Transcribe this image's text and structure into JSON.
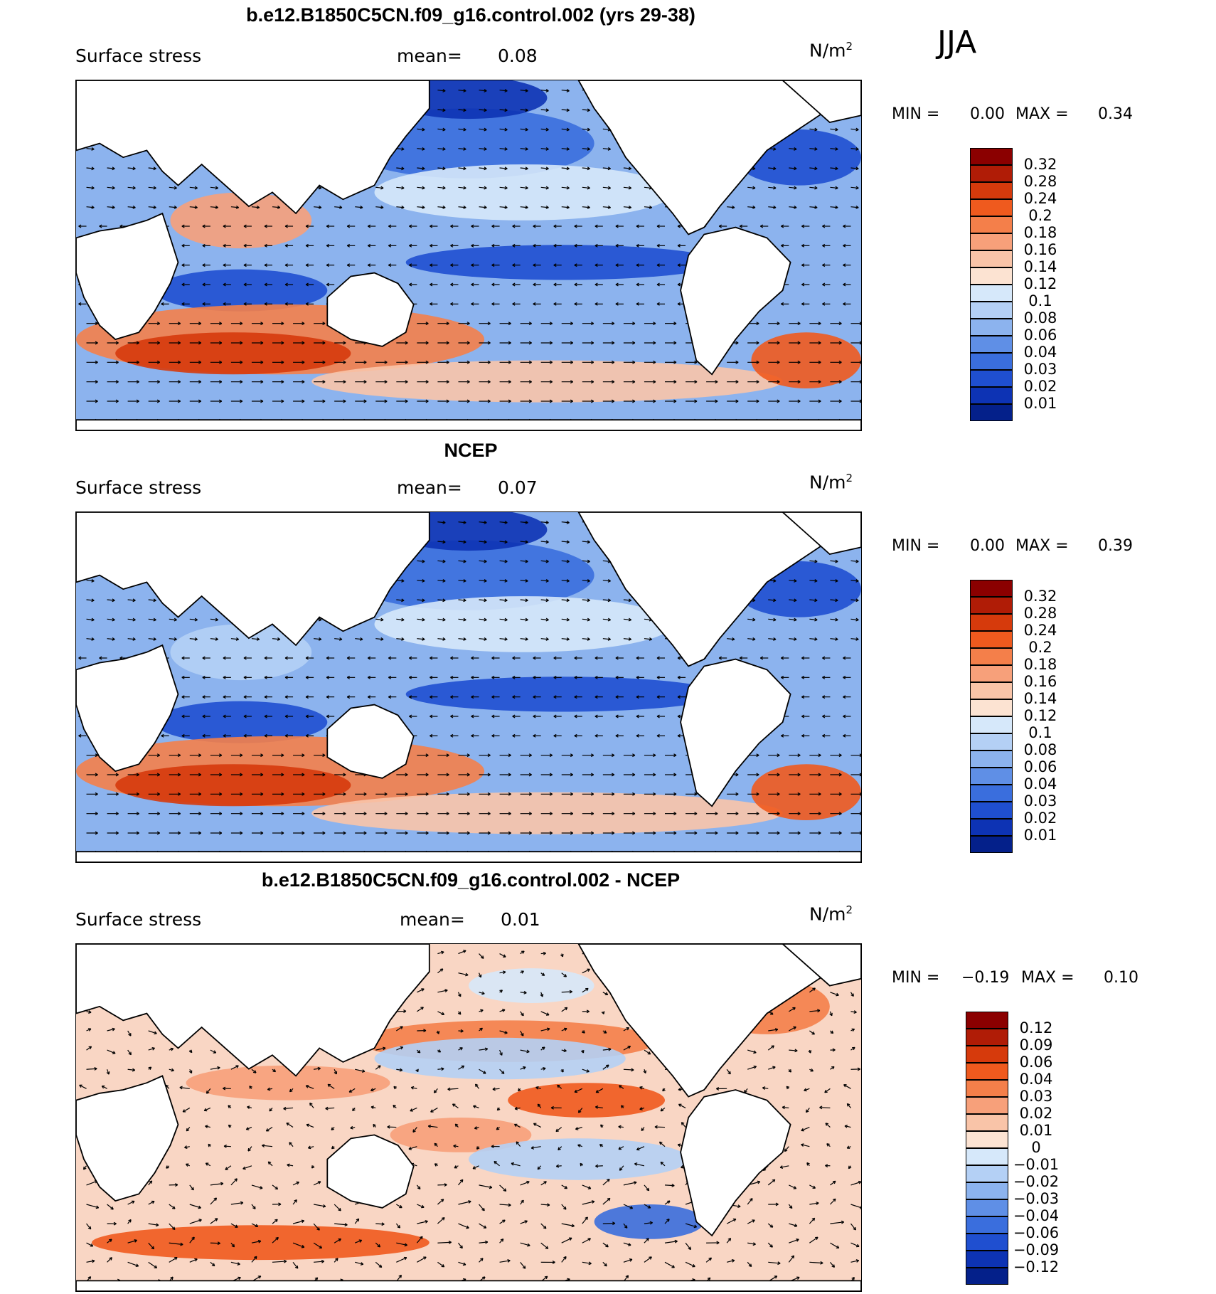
{
  "season": "JJA",
  "units": "N/m",
  "units_sup": "2",
  "panels": [
    {
      "title": "b.e12.B1850C5CN.f09_g16.control.002 (yrs 29-38)",
      "variable": "Surface stress",
      "mean_label": "mean=",
      "mean_value": "0.08",
      "min_label": "MIN =",
      "min_value": "0.00",
      "max_label": "MAX =",
      "max_value": "0.34",
      "levels": [
        "0.32",
        "0.28",
        "0.24",
        "0.2",
        "0.18",
        "0.16",
        "0.14",
        "0.12",
        "0.1",
        "0.08",
        "0.06",
        "0.04",
        "0.03",
        "0.02",
        "0.01"
      ],
      "colors": [
        "#8b0000",
        "#b01c06",
        "#d63a0c",
        "#ef5a1e",
        "#f47f4a",
        "#f7a07a",
        "#f9c4a8",
        "#fce3d2",
        "#d6e8fa",
        "#b4d0f5",
        "#8cb3ee",
        "#5f8fe6",
        "#3a6edd",
        "#1f4fd0",
        "#0d33b4",
        "#04208a"
      ]
    },
    {
      "title": "NCEP",
      "variable": "Surface stress",
      "mean_label": "mean=",
      "mean_value": "0.07",
      "min_label": "MIN =",
      "min_value": "0.00",
      "max_label": "MAX =",
      "max_value": "0.39",
      "levels": [
        "0.32",
        "0.28",
        "0.24",
        "0.2",
        "0.18",
        "0.16",
        "0.14",
        "0.12",
        "0.1",
        "0.08",
        "0.06",
        "0.04",
        "0.03",
        "0.02",
        "0.01"
      ],
      "colors": [
        "#8b0000",
        "#b01c06",
        "#d63a0c",
        "#ef5a1e",
        "#f47f4a",
        "#f7a07a",
        "#f9c4a8",
        "#fce3d2",
        "#d6e8fa",
        "#b4d0f5",
        "#8cb3ee",
        "#5f8fe6",
        "#3a6edd",
        "#1f4fd0",
        "#0d33b4",
        "#04208a"
      ]
    },
    {
      "title": "b.e12.B1850C5CN.f09_g16.control.002 - NCEP",
      "variable": "Surface stress",
      "mean_label": "mean=",
      "mean_value": "0.01",
      "min_label": "MIN =",
      "min_value": "−0.19",
      "max_label": "MAX =",
      "max_value": "0.10",
      "levels": [
        "0.12",
        "0.09",
        "0.06",
        "0.04",
        "0.03",
        "0.02",
        "0.01",
        "0",
        "−0.01",
        "−0.02",
        "−0.03",
        "−0.04",
        "−0.06",
        "−0.09",
        "−0.12"
      ],
      "colors": [
        "#8b0000",
        "#b01c06",
        "#d63a0c",
        "#ef5a1e",
        "#f47f4a",
        "#f7a07a",
        "#f9c4a8",
        "#fce3d2",
        "#d6e8fa",
        "#b4d0f5",
        "#8cb3ee",
        "#5f8fe6",
        "#3a6edd",
        "#1f4fd0",
        "#0d33b4",
        "#04208a"
      ]
    }
  ],
  "chart_data": {
    "type": "heatmap",
    "title": "JJA",
    "xlabel": "",
    "ylabel": "",
    "panels": [
      {
        "name": "b.e12.B1850C5CN.f09_g16.control.002 (yrs 29-38)",
        "variable": "Surface stress",
        "units": "N/m2",
        "mean": 0.08,
        "min": 0.0,
        "max": 0.34,
        "contour_levels": [
          0.01,
          0.02,
          0.03,
          0.04,
          0.06,
          0.08,
          0.1,
          0.12,
          0.14,
          0.16,
          0.18,
          0.2,
          0.24,
          0.28,
          0.32
        ]
      },
      {
        "name": "NCEP",
        "variable": "Surface stress",
        "units": "N/m2",
        "mean": 0.07,
        "min": 0.0,
        "max": 0.39,
        "contour_levels": [
          0.01,
          0.02,
          0.03,
          0.04,
          0.06,
          0.08,
          0.1,
          0.12,
          0.14,
          0.16,
          0.18,
          0.2,
          0.24,
          0.28,
          0.32
        ]
      },
      {
        "name": "b.e12.B1850C5CN.f09_g16.control.002 - NCEP",
        "variable": "Surface stress",
        "units": "N/m2",
        "mean": 0.01,
        "min": -0.19,
        "max": 0.1,
        "contour_levels": [
          -0.12,
          -0.09,
          -0.06,
          -0.04,
          -0.03,
          -0.02,
          -0.01,
          0,
          0.01,
          0.02,
          0.03,
          0.04,
          0.06,
          0.09,
          0.12
        ]
      }
    ]
  }
}
